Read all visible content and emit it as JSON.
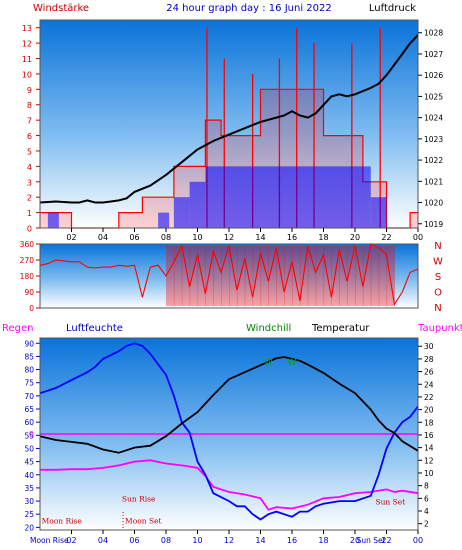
{
  "chart_data": [
    {
      "type": "line",
      "title": "24 hour graph day : 16 Juni 2022",
      "left_label": "Windstärke",
      "right_label": "Luftdruck",
      "left_ticks": [
        0,
        1,
        2,
        3,
        4,
        5,
        6,
        7,
        8,
        9,
        10,
        11,
        12,
        13
      ],
      "right_ticks": [
        1019,
        1020,
        1021,
        1022,
        1023,
        1024,
        1025,
        1026,
        1027,
        1028
      ],
      "x_ticks": [
        "02",
        "04",
        "06",
        "08",
        "10",
        "12",
        "14",
        "16",
        "18",
        "20",
        "22",
        "00"
      ],
      "ylim_left": [
        0,
        13.5
      ],
      "ylim_right": [
        1018.8,
        1028.6
      ],
      "colors": {
        "gust": "#ff0000",
        "wind": "#0000ff",
        "pressure": "#000000"
      },
      "pressure": {
        "x": [
          0.0,
          1.0,
          2.0,
          2.5,
          3.0,
          3.5,
          4.0,
          4.5,
          5.0,
          5.5,
          6.0,
          7.0,
          8.0,
          9.0,
          10.0,
          11.0,
          12.0,
          13.0,
          14.0,
          15.0,
          15.5,
          16.0,
          16.5,
          17.0,
          17.5,
          18.0,
          18.5,
          19.0,
          19.5,
          20.0,
          21.0,
          21.5,
          22.0,
          22.5,
          23.0,
          23.5,
          24.0
        ],
        "y": [
          1020.0,
          1020.05,
          1020.0,
          1020.0,
          1020.1,
          1020.0,
          1020.0,
          1020.05,
          1020.1,
          1020.2,
          1020.5,
          1020.8,
          1021.3,
          1021.9,
          1022.5,
          1022.9,
          1023.2,
          1023.5,
          1023.8,
          1024.0,
          1024.1,
          1024.3,
          1024.1,
          1024.0,
          1024.2,
          1024.6,
          1025.0,
          1025.1,
          1025.0,
          1025.1,
          1025.4,
          1025.6,
          1026.0,
          1026.5,
          1027.0,
          1027.5,
          1027.9
        ]
      },
      "wind_segments": [
        {
          "from": 0.5,
          "to": 1.2,
          "value": 1
        },
        {
          "from": 7.5,
          "to": 8.2,
          "value": 1
        },
        {
          "from": 8.5,
          "to": 9.5,
          "value": 2
        },
        {
          "from": 9.5,
          "to": 10.5,
          "value": 3
        },
        {
          "from": 10.5,
          "to": 21.0,
          "value": 4
        },
        {
          "from": 21.0,
          "to": 22.0,
          "value": 2
        }
      ],
      "gust_segments": [
        {
          "from": 0.0,
          "to": 2.0,
          "value": 1
        },
        {
          "from": 2.0,
          "to": 5.0,
          "value": 0
        },
        {
          "from": 5.0,
          "to": 6.5,
          "value": 1
        },
        {
          "from": 6.5,
          "to": 8.5,
          "value": 2
        },
        {
          "from": 8.5,
          "to": 10.5,
          "value": 4
        },
        {
          "from": 10.5,
          "to": 11.5,
          "value": 7
        },
        {
          "from": 11.5,
          "to": 14.0,
          "value": 6
        },
        {
          "from": 14.0,
          "to": 18.0,
          "value": 9
        },
        {
          "from": 18.0,
          "to": 20.5,
          "value": 6
        },
        {
          "from": 20.5,
          "to": 22.0,
          "value": 3
        },
        {
          "from": 22.0,
          "to": 23.5,
          "value": 0
        },
        {
          "from": 23.5,
          "to": 24.0,
          "value": 1
        }
      ],
      "gust_peaks": [
        {
          "x": 10.6,
          "value": 13
        },
        {
          "x": 11.7,
          "value": 11
        },
        {
          "x": 13.5,
          "value": 10
        },
        {
          "x": 15.2,
          "value": 11
        },
        {
          "x": 16.3,
          "value": 13
        },
        {
          "x": 17.4,
          "value": 12
        },
        {
          "x": 19.8,
          "value": 12
        },
        {
          "x": 21.6,
          "value": 13
        }
      ]
    },
    {
      "type": "scatter",
      "side_labels": [
        "N",
        "W",
        "S",
        "O",
        "N"
      ],
      "y_ticks": [
        0,
        90,
        180,
        270,
        360
      ],
      "ylim": [
        0,
        360
      ],
      "colors": {
        "direction": "#ff0000"
      },
      "direction": {
        "x": [
          0.0,
          0.5,
          1.0,
          1.5,
          2.0,
          2.5,
          3.0,
          3.5,
          4.0,
          4.5,
          5.0,
          5.5,
          6.0,
          6.5,
          7.0,
          7.5,
          8.0,
          8.5,
          9.0,
          9.5,
          10.0,
          10.5,
          11.0,
          11.5,
          12.0,
          12.5,
          13.0,
          13.5,
          14.0,
          14.5,
          15.0,
          15.5,
          16.0,
          16.5,
          17.0,
          17.5,
          18.0,
          18.5,
          19.0,
          19.5,
          20.0,
          20.5,
          21.0,
          21.5,
          22.0,
          22.5,
          23.0,
          23.5,
          24.0
        ],
        "y": [
          240,
          250,
          270,
          265,
          260,
          260,
          230,
          225,
          230,
          230,
          240,
          235,
          240,
          60,
          230,
          240,
          180,
          260,
          350,
          120,
          300,
          80,
          320,
          200,
          350,
          100,
          280,
          60,
          310,
          150,
          340,
          90,
          260,
          40,
          350,
          200,
          300,
          60,
          330,
          150,
          350,
          120,
          360,
          340,
          300,
          20,
          90,
          200,
          220
        ]
      }
    },
    {
      "type": "line",
      "labels": {
        "rain": "Regen",
        "humidity": "Luftfeuchte",
        "windchill": "Windchill",
        "temperature": "Temperatur",
        "dewpoint": "Taupunkt"
      },
      "left_ticks": [
        20,
        25,
        30,
        35,
        40,
        45,
        50,
        55,
        60,
        65,
        70,
        75,
        80,
        85,
        90
      ],
      "right_ticks": [
        2,
        4,
        6,
        8,
        10,
        12,
        14,
        16,
        18,
        20,
        22,
        24,
        26,
        28,
        30
      ],
      "x_ticks": [
        "02",
        "04",
        "06",
        "08",
        "10",
        "12",
        "14",
        "16",
        "18",
        "20",
        "22",
        "00"
      ],
      "rain_axis_label": "0",
      "ylim_left": [
        19,
        92
      ],
      "ylim_right": [
        1,
        31.3
      ],
      "colors": {
        "humidity": "#0000ff",
        "temperature": "#000000",
        "dewpoint": "#ff00ff",
        "windchill": "#00aa00",
        "rain": "#ff00ff"
      },
      "rain_level": 0,
      "humidity": {
        "x": [
          0.0,
          0.5,
          1.0,
          2.0,
          3.0,
          3.5,
          4.0,
          5.0,
          5.5,
          6.0,
          6.5,
          7.0,
          8.0,
          8.5,
          9.0,
          9.5,
          10.0,
          10.5,
          11.0,
          12.0,
          12.5,
          13.0,
          13.5,
          14.0,
          14.5,
          15.0,
          16.0,
          16.5,
          17.0,
          17.5,
          18.0,
          19.0,
          20.0,
          21.0,
          21.5,
          22.0,
          22.5,
          23.0,
          23.5,
          24.0
        ],
        "y": [
          71,
          72,
          73,
          76,
          79,
          81,
          84,
          87,
          89,
          90,
          89,
          86,
          78,
          70,
          60,
          56,
          45,
          40,
          33,
          30,
          28,
          28,
          25,
          23,
          25,
          26,
          24,
          26,
          26,
          28,
          29,
          30,
          30,
          32,
          40,
          50,
          56,
          60,
          62,
          66
        ]
      },
      "temperature": {
        "x": [
          0.0,
          0.5,
          1.0,
          2.0,
          3.0,
          4.0,
          5.0,
          5.5,
          6.0,
          7.0,
          8.0,
          9.0,
          10.0,
          11.0,
          12.0,
          13.0,
          14.0,
          15.0,
          15.5,
          16.0,
          16.5,
          17.0,
          18.0,
          19.0,
          20.0,
          21.0,
          21.5,
          22.0,
          22.5,
          23.0,
          24.0
        ],
        "y": [
          15.8,
          15.5,
          15.2,
          14.9,
          14.6,
          13.7,
          13.2,
          13.6,
          14.0,
          14.3,
          15.8,
          17.8,
          19.6,
          22.3,
          24.8,
          25.9,
          27.0,
          28.1,
          28.3,
          28.0,
          27.7,
          27.1,
          25.8,
          24.1,
          22.6,
          20.0,
          18.3,
          17.0,
          16.3,
          15.0,
          13.5
        ]
      },
      "dewpoint": {
        "x": [
          0.0,
          1.0,
          2.0,
          3.0,
          4.0,
          5.0,
          6.0,
          7.0,
          8.0,
          9.0,
          10.0,
          10.5,
          11.0,
          12.0,
          13.0,
          14.0,
          14.5,
          15.0,
          16.0,
          17.0,
          18.0,
          19.0,
          20.0,
          21.0,
          22.0,
          22.5,
          23.0,
          24.0
        ],
        "y": [
          10.5,
          10.5,
          10.6,
          10.6,
          10.8,
          11.2,
          11.8,
          12.0,
          11.5,
          11.2,
          10.8,
          9.5,
          7.8,
          7.0,
          6.6,
          6.0,
          4.2,
          4.6,
          4.4,
          5.0,
          6.0,
          6.2,
          6.8,
          7.0,
          7.4,
          7.0,
          7.2,
          6.8
        ]
      },
      "windchill_marks": [
        {
          "x": 14.5,
          "value": 27.1,
          "label": "W"
        },
        {
          "x": 16.0,
          "value": 27.0,
          "label": "W"
        }
      ],
      "annotations": [
        {
          "text": "Sun Rise",
          "x": 5.2,
          "value": 5.5
        },
        {
          "text": "Sun Set",
          "x": 21.3,
          "value": 5.0
        },
        {
          "text": "Moon Rise",
          "x": 0.1,
          "value": 2.0
        },
        {
          "text": "Moon Set",
          "x": 5.4,
          "value": 2.0
        }
      ],
      "bottom_labels": [
        "Moon Rise",
        "Sun Set"
      ]
    }
  ]
}
